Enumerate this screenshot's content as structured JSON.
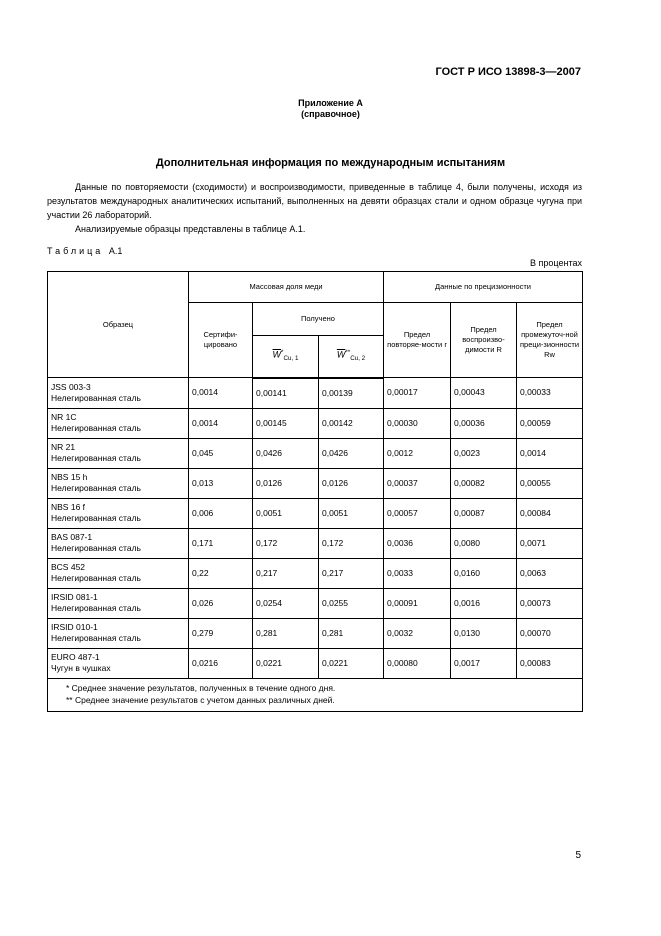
{
  "header": {
    "standard": "ГОСТ Р ИСО 13898-3—2007"
  },
  "appendix": {
    "title": "Приложение А",
    "subtitle": "(справочное)"
  },
  "section_title": "Дополнительная информация по международным испытаниям",
  "paragraphs": [
    "Данные по повторяемости (сходимости) и воспроизводимости, приведенные в таблице 4, были получены, исходя из результатов международных аналитических испытаний, выполненных на девяти образцах стали и одном образце чугуна при участии 26 лабораторий.",
    "Анализируемые образцы представлены в таблице А.1."
  ],
  "table": {
    "caption_word": "Таблица",
    "caption_num": "А.1",
    "unit": "В процентах",
    "headers": {
      "sample": "Образец",
      "mass_fraction": "Массовая доля меди",
      "precision": "Данные по прецизионности",
      "certified": "Сертифи-цировано",
      "obtained": "Получено",
      "w1": "W",
      "w1_sub": "Cu, 1",
      "w1_sup": "*",
      "w2": "W",
      "w2_sub": "Cu, 2",
      "w2_sup": "**",
      "r": "Предел повторяе-мости r",
      "R": "Предел воспроизво-димости R",
      "Rw": "Предел промежуточ-ной преци-зионности Rw"
    },
    "rows": [
      {
        "code": "JSS 003-3",
        "type": "Нелегированная сталь",
        "cert": "0,0014",
        "w1": "0,00141",
        "w2": "0,00139",
        "r": "0,00017",
        "R": "0,00043",
        "Rw": "0,00033"
      },
      {
        "code": "NR 1C",
        "type": "Нелегированная сталь",
        "cert": "0,0014",
        "w1": "0,00145",
        "w2": "0,00142",
        "r": "0,00030",
        "R": "0,00036",
        "Rw": "0,00059"
      },
      {
        "code": "NR 21",
        "type": "Нелегированная сталь",
        "cert": "0,045",
        "w1": "0,0426",
        "w2": "0,0426",
        "r": "0,0012",
        "R": "0,0023",
        "Rw": "0,0014"
      },
      {
        "code": "NBS 15 h",
        "type": "Нелегированная сталь",
        "cert": "0,013",
        "w1": "0,0126",
        "w2": "0,0126",
        "r": "0,00037",
        "R": "0,00082",
        "Rw": "0,00055"
      },
      {
        "code": "NBS 16 f",
        "type": "Нелегированная сталь",
        "cert": "0,006",
        "w1": "0,0051",
        "w2": "0,0051",
        "r": "0,00057",
        "R": "0,00087",
        "Rw": "0,00084"
      },
      {
        "code": "BAS 087-1",
        "type": "Нелегированная сталь",
        "cert": "0,171",
        "w1": "0,172",
        "w2": "0,172",
        "r": "0,0036",
        "R": "0,0080",
        "Rw": "0,0071"
      },
      {
        "code": "BCS 452",
        "type": "Нелегированная сталь",
        "cert": "0,22",
        "w1": "0,217",
        "w2": "0,217",
        "r": "0,0033",
        "R": "0,0160",
        "Rw": "0,0063"
      },
      {
        "code": "IRSID 081-1",
        "type": "Нелегированная сталь",
        "cert": "0,026",
        "w1": "0,0254",
        "w2": "0,0255",
        "r": "0,00091",
        "R": "0,0016",
        "Rw": "0,00073"
      },
      {
        "code": "IRSID 010-1",
        "type": "Нелегированная сталь",
        "cert": "0,279",
        "w1": "0,281",
        "w2": "0,281",
        "r": "0,0032",
        "R": "0,0130",
        "Rw": "0,00070"
      },
      {
        "code": "EURO 487-1",
        "type": "Чугун в чушках",
        "cert": "0,0216",
        "w1": "0,0221",
        "w2": "0,0221",
        "r": "0,00080",
        "R": "0,0017",
        "Rw": "0,00083"
      }
    ],
    "notes": [
      "*  Среднее значение результатов, полученных в течение одного дня.",
      "** Среднее значение результатов с учетом данных различных дней."
    ]
  },
  "page_number": "5"
}
